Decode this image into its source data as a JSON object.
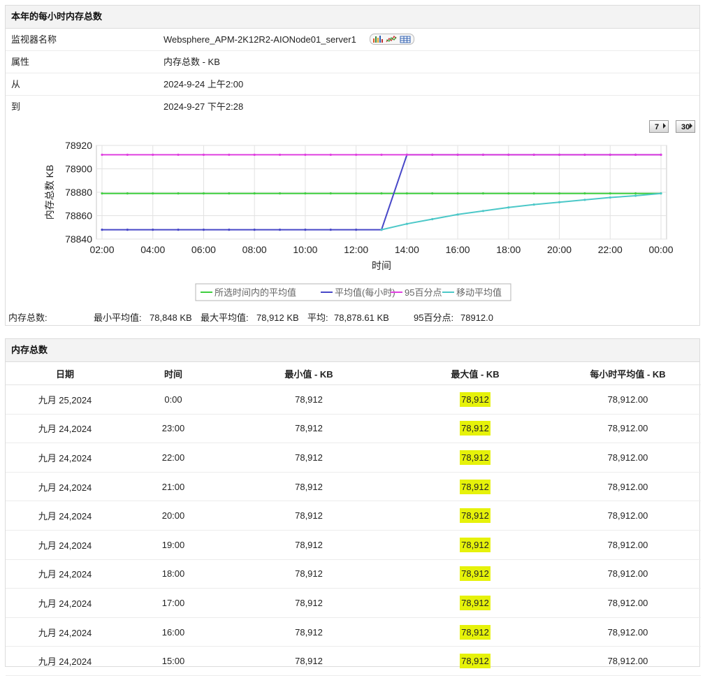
{
  "top_panel": {
    "title": "本年的每小时内存总数",
    "rows": [
      {
        "label": "监视器名称",
        "value": "Websphere_APM-2K12R2-AIONode01_server1"
      },
      {
        "label": "属性",
        "value": "内存总数 - KB"
      },
      {
        "label": "从",
        "value": "2024-9-24 上午2:00"
      },
      {
        "label": "到",
        "value": "2024-9-27 下午2:28"
      }
    ],
    "period_buttons": [
      "7",
      "30"
    ]
  },
  "chart_data": {
    "type": "line",
    "xlabel": "时间",
    "ylabel": "内存总数 KB",
    "ylim": [
      78840,
      78920
    ],
    "yticks": [
      78840,
      78860,
      78880,
      78900,
      78920
    ],
    "xtick_labels": [
      "02:00",
      "04:00",
      "06:00",
      "08:00",
      "10:00",
      "12:00",
      "14:00",
      "16:00",
      "18:00",
      "20:00",
      "22:00",
      "00:00"
    ],
    "x": [
      "02:00",
      "03:00",
      "04:00",
      "05:00",
      "06:00",
      "07:00",
      "08:00",
      "09:00",
      "10:00",
      "11:00",
      "12:00",
      "13:00",
      "14:00",
      "15:00",
      "16:00",
      "17:00",
      "18:00",
      "19:00",
      "20:00",
      "21:00",
      "22:00",
      "23:00",
      "00:00"
    ],
    "grid": true,
    "legend_position": "bottom",
    "series": [
      {
        "name": "所选时间内的平均值",
        "color": "#3ecf3e",
        "values": [
          78879,
          78879,
          78879,
          78879,
          78879,
          78879,
          78879,
          78879,
          78879,
          78879,
          78879,
          78879,
          78879,
          78879,
          78879,
          78879,
          78879,
          78879,
          78879,
          78879,
          78879,
          78879,
          78879
        ]
      },
      {
        "name": "平均值(每小时)",
        "color": "#4848c8",
        "values": [
          78848,
          78848,
          78848,
          78848,
          78848,
          78848,
          78848,
          78848,
          78848,
          78848,
          78848,
          78848,
          78912,
          78912,
          78912,
          78912,
          78912,
          78912,
          78912,
          78912,
          78912,
          78912,
          78912
        ]
      },
      {
        "name": "95百分点",
        "color": "#e040e0",
        "values": [
          78912,
          78912,
          78912,
          78912,
          78912,
          78912,
          78912,
          78912,
          78912,
          78912,
          78912,
          78912,
          78912,
          78912,
          78912,
          78912,
          78912,
          78912,
          78912,
          78912,
          78912,
          78912,
          78912
        ]
      },
      {
        "name": "移动平均值",
        "color": "#4cc8c8",
        "values": [
          null,
          null,
          null,
          null,
          null,
          null,
          null,
          null,
          null,
          null,
          null,
          78848,
          78853,
          78857,
          78861,
          78864,
          78867,
          78869.5,
          78871.5,
          78873.5,
          78875.5,
          78877,
          78879
        ]
      }
    ]
  },
  "summary": {
    "label": "内存总数:",
    "min_label": "最小平均值:",
    "min_value": "78,848  KB",
    "max_label": "最大平均值:",
    "max_value": "78,912  KB",
    "avg_label": "平均:",
    "avg_value": "78,878.61  KB",
    "p95_label": "95百分点:",
    "p95_value": "78912.0"
  },
  "bottom_panel": {
    "title": "内存总数",
    "columns": [
      "日期",
      "时间",
      "最小值 - KB",
      "最大值 - KB",
      "每小时平均值 - KB"
    ],
    "highlight_color": "#e6f20a",
    "rows": [
      [
        "九月 25,2024",
        "0:00",
        "78,912",
        "78,912",
        "78,912.00"
      ],
      [
        "九月 24,2024",
        "23:00",
        "78,912",
        "78,912",
        "78,912.00"
      ],
      [
        "九月 24,2024",
        "22:00",
        "78,912",
        "78,912",
        "78,912.00"
      ],
      [
        "九月 24,2024",
        "21:00",
        "78,912",
        "78,912",
        "78,912.00"
      ],
      [
        "九月 24,2024",
        "20:00",
        "78,912",
        "78,912",
        "78,912.00"
      ],
      [
        "九月 24,2024",
        "19:00",
        "78,912",
        "78,912",
        "78,912.00"
      ],
      [
        "九月 24,2024",
        "18:00",
        "78,912",
        "78,912",
        "78,912.00"
      ],
      [
        "九月 24,2024",
        "17:00",
        "78,912",
        "78,912",
        "78,912.00"
      ],
      [
        "九月 24,2024",
        "16:00",
        "78,912",
        "78,912",
        "78,912.00"
      ],
      [
        "九月 24,2024",
        "15:00",
        "78,912",
        "78,912",
        "78,912.00"
      ]
    ]
  }
}
